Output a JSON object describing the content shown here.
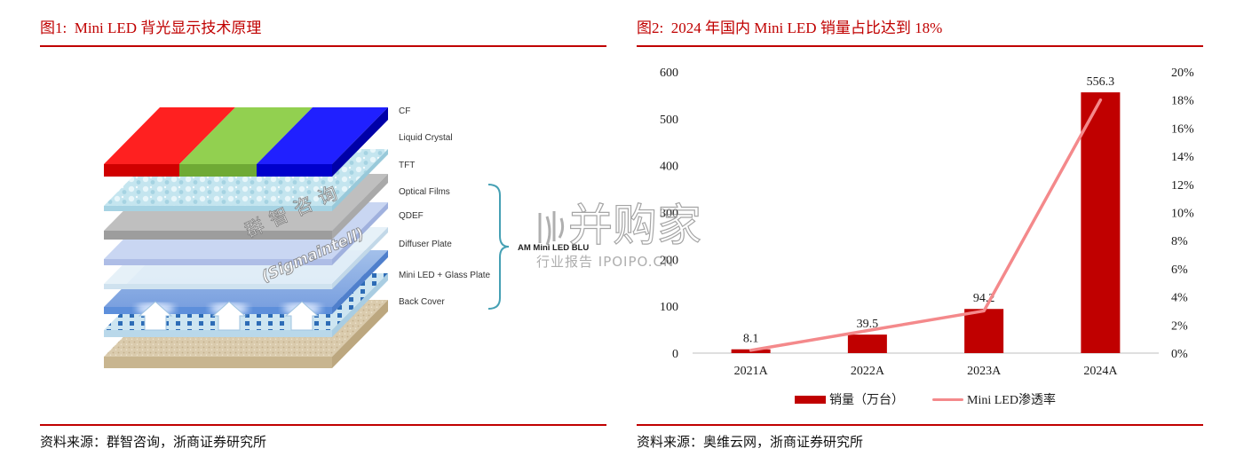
{
  "figure1": {
    "title": "图1:  Mini LED 背光显示技术原理",
    "source": "资料来源：群智咨询，浙商证券研究所",
    "layers": [
      "CF",
      "Liquid Crystal",
      "TFT",
      "Optical Films",
      "QDEF",
      "Diffuser Plate",
      "Mini LED + Glass Plate",
      "Back Cover"
    ],
    "bracket_label": "AM Mini LED BLU",
    "watermark": {
      "cn": "群智咨询",
      "en": "(Sigmaintell)"
    }
  },
  "figure2": {
    "source": "资料来源：奥维云网，浙商证券研究所"
  },
  "chart_data": {
    "type": "bar",
    "title": "图2:  2024 年国内 Mini LED 销量占比达到 18%",
    "categories": [
      "2021A",
      "2022A",
      "2023A",
      "2024A"
    ],
    "series": [
      {
        "name": "销量（万台）",
        "type": "bar",
        "axis": "left",
        "values": [
          8.1,
          39.5,
          94.2,
          556.3
        ]
      },
      {
        "name": "Mini LED渗透率",
        "type": "line",
        "axis": "right",
        "values": [
          0.2,
          1.6,
          3.0,
          18.0
        ]
      }
    ],
    "y_left": {
      "range": [
        0,
        600
      ],
      "ticks": [
        "0",
        "100",
        "200",
        "300",
        "400",
        "500",
        "600"
      ]
    },
    "y_right": {
      "range": [
        0,
        20
      ],
      "ticks": [
        "0%",
        "2%",
        "4%",
        "6%",
        "8%",
        "10%",
        "12%",
        "14%",
        "16%",
        "18%",
        "20%"
      ]
    },
    "xlabel": "",
    "ylabel": "",
    "grid": false,
    "legend": "bottom",
    "colors": {
      "bar": "#c00000",
      "line": "#f4898b"
    }
  },
  "watermark": {
    "name": "并购家",
    "sub": "行业报告 IPOIPO.CN"
  },
  "accent_color": "#c00000"
}
